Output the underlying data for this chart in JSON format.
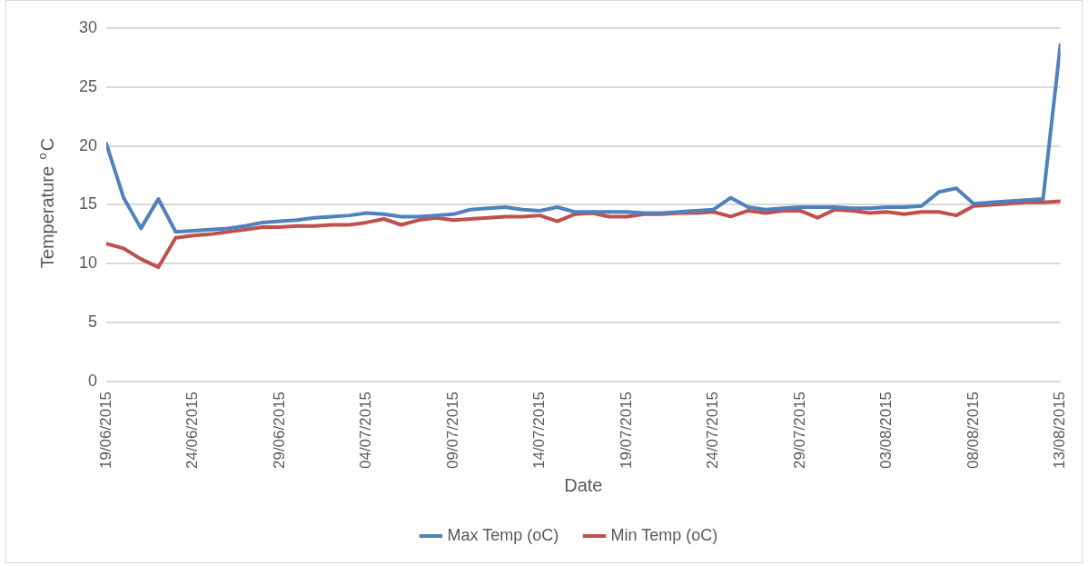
{
  "chart_data": {
    "type": "line",
    "xlabel": "Date",
    "ylabel": "Temperature $^{o}$C",
    "x": [
      "2015-06-19",
      "2015-06-20",
      "2015-06-21",
      "2015-06-22",
      "2015-06-23",
      "2015-06-24",
      "2015-06-25",
      "2015-06-26",
      "2015-06-27",
      "2015-06-28",
      "2015-06-29",
      "2015-06-30",
      "2015-07-01",
      "2015-07-02",
      "2015-07-03",
      "2015-07-04",
      "2015-07-05",
      "2015-07-06",
      "2015-07-07",
      "2015-07-08",
      "2015-07-09",
      "2015-07-10",
      "2015-07-11",
      "2015-07-12",
      "2015-07-13",
      "2015-07-14",
      "2015-07-15",
      "2015-07-16",
      "2015-07-17",
      "2015-07-18",
      "2015-07-19",
      "2015-07-20",
      "2015-07-21",
      "2015-07-22",
      "2015-07-23",
      "2015-07-24",
      "2015-07-25",
      "2015-07-26",
      "2015-07-27",
      "2015-07-28",
      "2015-07-29",
      "2015-07-30",
      "2015-07-31",
      "2015-08-01",
      "2015-08-02",
      "2015-08-03",
      "2015-08-04",
      "2015-08-05",
      "2015-08-06",
      "2015-08-07",
      "2015-08-08",
      "2015-08-09",
      "2015-08-10",
      "2015-08-11",
      "2015-08-12",
      "2015-08-13"
    ],
    "series": [
      {
        "name": "Max Temp (oC)",
        "color": "#4f81bd",
        "values": [
          20.2,
          15.6,
          13.0,
          15.5,
          12.7,
          12.8,
          12.9,
          13.0,
          13.2,
          13.5,
          13.6,
          13.7,
          13.9,
          14.0,
          14.1,
          14.3,
          14.2,
          14.0,
          14.0,
          14.1,
          14.2,
          14.6,
          14.7,
          14.8,
          14.6,
          14.5,
          14.8,
          14.4,
          14.4,
          14.4,
          14.4,
          14.3,
          14.3,
          14.4,
          14.5,
          14.6,
          15.6,
          14.8,
          14.6,
          14.7,
          14.8,
          14.8,
          14.8,
          14.7,
          14.7,
          14.8,
          14.8,
          14.9,
          16.1,
          16.4,
          15.1,
          15.2,
          15.3,
          15.4,
          15.5,
          28.6
        ]
      },
      {
        "name": "Min Temp (oC)",
        "color": "#c0504d",
        "values": [
          11.7,
          11.3,
          10.4,
          9.7,
          12.2,
          12.4,
          12.5,
          12.7,
          12.9,
          13.1,
          13.1,
          13.2,
          13.2,
          13.3,
          13.3,
          13.5,
          13.8,
          13.3,
          13.7,
          13.9,
          13.7,
          13.8,
          13.9,
          14.0,
          14.0,
          14.1,
          13.6,
          14.2,
          14.3,
          14.0,
          14.0,
          14.2,
          14.2,
          14.3,
          14.3,
          14.4,
          14.0,
          14.5,
          14.3,
          14.5,
          14.5,
          13.9,
          14.6,
          14.5,
          14.3,
          14.4,
          14.2,
          14.4,
          14.4,
          14.1,
          14.9,
          15.0,
          15.1,
          15.2,
          15.2,
          15.3
        ]
      }
    ],
    "xlim": [
      "2015-06-19",
      "2015-08-13"
    ],
    "xticks": [
      {
        "value": "2015-06-19",
        "label": "19/06/2015"
      },
      {
        "value": "2015-06-24",
        "label": "24/06/2015"
      },
      {
        "value": "2015-06-29",
        "label": "29/06/2015"
      },
      {
        "value": "2015-07-04",
        "label": "04/07/2015"
      },
      {
        "value": "2015-07-09",
        "label": "09/07/2015"
      },
      {
        "value": "2015-07-14",
        "label": "14/07/2015"
      },
      {
        "value": "2015-07-19",
        "label": "19/07/2015"
      },
      {
        "value": "2015-07-24",
        "label": "24/07/2015"
      },
      {
        "value": "2015-07-29",
        "label": "29/07/2015"
      },
      {
        "value": "2015-08-03",
        "label": "03/08/2015"
      },
      {
        "value": "2015-08-08",
        "label": "08/08/2015"
      },
      {
        "value": "2015-08-13",
        "label": "13/08/2015"
      }
    ],
    "ylim": [
      0,
      30
    ],
    "yticks": [
      0,
      5,
      10,
      15,
      20,
      25,
      30
    ],
    "grid": "y",
    "legend": "bottom",
    "marker": "none",
    "line_style": "solid"
  }
}
